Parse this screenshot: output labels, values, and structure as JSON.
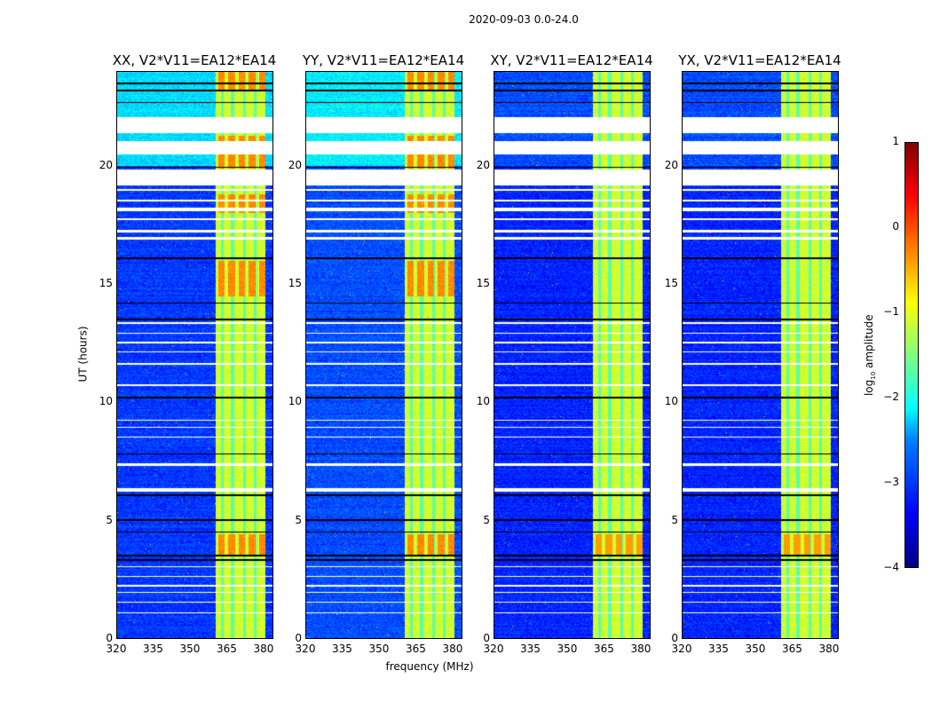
{
  "suptitle": "2020-09-03 0.0-24.0",
  "chart_data": {
    "type": "heatmap",
    "title": "2020-09-03 0.0-24.0",
    "xlabel": "frequency (MHz)",
    "ylabel": "UT (hours)",
    "xlim": [
      320,
      384
    ],
    "ylim": [
      0,
      24
    ],
    "xticks": [
      "320",
      "335",
      "350",
      "365",
      "380"
    ],
    "yticks": [
      "0",
      "5",
      "10",
      "15",
      "20"
    ],
    "panels": [
      {
        "title": "XX, V2*V11=EA12*EA14",
        "upper_level": -2.3,
        "base_level": -3.1
      },
      {
        "title": "YY, V2*V11=EA12*EA14",
        "upper_level": -2.2,
        "base_level": -3.0
      },
      {
        "title": "XY, V2*V11=EA12*EA14",
        "upper_level": -3.0,
        "base_level": -3.2
      },
      {
        "title": "YX, V2*V11=EA12*EA14",
        "upper_level": -3.0,
        "base_level": -3.2
      }
    ],
    "rfi_band_mhz": [
      360.5,
      381
    ],
    "rfi_level": -1.1,
    "flagged_gaps_hours": [
      [
        21.4,
        22.1
      ],
      [
        20.5,
        21.05
      ],
      [
        19.2,
        19.85
      ],
      [
        18.95,
        19.05
      ],
      [
        18.5,
        18.6
      ],
      [
        18.1,
        18.25
      ],
      [
        17.7,
        17.8
      ],
      [
        17.2,
        17.3
      ],
      [
        16.9,
        17.0
      ],
      [
        13.3,
        13.4
      ],
      [
        12.9,
        12.95
      ],
      [
        12.5,
        12.55
      ],
      [
        12.1,
        12.15
      ],
      [
        11.6,
        11.65
      ],
      [
        10.7,
        10.75
      ],
      [
        9.2,
        9.25
      ],
      [
        8.9,
        8.95
      ],
      [
        8.5,
        8.55
      ],
      [
        7.3,
        7.4
      ],
      [
        6.2,
        6.35
      ],
      [
        3.0,
        3.05
      ],
      [
        2.6,
        2.65
      ],
      [
        2.2,
        2.25
      ],
      [
        1.9,
        1.95
      ],
      [
        1.5,
        1.55
      ],
      [
        1.05,
        1.1
      ]
    ],
    "dark_lines_hours": [
      23.2,
      23.5,
      22.7,
      19.95,
      16.1,
      14.2,
      13.5,
      10.2,
      7.8,
      6.05,
      5.0,
      4.5,
      3.5,
      3.3
    ],
    "colorbar": {
      "label": "log10 amplitude",
      "label_main": "log",
      "label_sub": "10",
      "label_rest": " amplitude",
      "range": [
        -4,
        1
      ],
      "ticks": [
        "1",
        "0",
        "−1",
        "−2",
        "−3",
        "−4"
      ],
      "colormap": "jet"
    }
  }
}
